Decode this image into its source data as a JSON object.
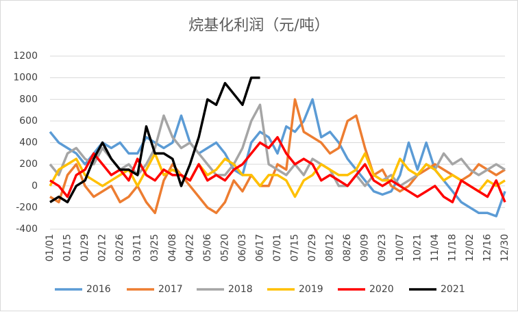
{
  "chart_data": {
    "type": "line",
    "title": "烷基化利润（元/吨）",
    "categories": [
      "01/01",
      null,
      "01/15",
      null,
      "01/29",
      null,
      "02/12",
      null,
      "02/26",
      null,
      "03/11",
      null,
      "03/25",
      null,
      "04/08",
      null,
      "04/22",
      null,
      "05/06",
      null,
      "05/20",
      null,
      "06/03",
      null,
      "06/17",
      null,
      "07/01",
      null,
      "07/15",
      null,
      "07/29",
      null,
      "08/12",
      null,
      "08/26",
      null,
      "09/09",
      null,
      "09/23",
      null,
      "10/07",
      null,
      "10/21",
      null,
      "11/04",
      null,
      "11/18",
      null,
      "12/02",
      null,
      "12/16",
      null,
      "12/30"
    ],
    "series": [
      {
        "name": "2016",
        "color": "#5b9bd5",
        "values": [
          500,
          400,
          350,
          300,
          200,
          300,
          400,
          350,
          400,
          300,
          300,
          450,
          400,
          350,
          400,
          650,
          400,
          300,
          350,
          400,
          300,
          150,
          100,
          400,
          500,
          450,
          300,
          550,
          500,
          600,
          800,
          450,
          500,
          400,
          250,
          150,
          50,
          -50,
          -80,
          -50,
          100,
          400,
          150,
          400,
          150,
          50,
          -50,
          -150,
          -200,
          -250,
          -250,
          -280,
          -50
        ]
      },
      {
        "name": "2017",
        "color": "#ed7d31",
        "values": [
          -100,
          -150,
          100,
          200,
          0,
          -100,
          -50,
          0,
          -150,
          -100,
          0,
          -150,
          -250,
          50,
          200,
          100,
          0,
          -100,
          -200,
          -250,
          -150,
          50,
          -50,
          100,
          0,
          0,
          200,
          150,
          800,
          500,
          450,
          400,
          300,
          350,
          600,
          650,
          350,
          100,
          150,
          0,
          -50,
          0,
          100,
          150,
          200,
          150,
          100,
          50,
          100,
          200,
          150,
          100,
          150
        ]
      },
      {
        "name": "2018",
        "color": "#a5a5a5",
        "values": [
          200,
          100,
          300,
          350,
          250,
          200,
          350,
          250,
          150,
          200,
          100,
          200,
          350,
          650,
          450,
          350,
          400,
          300,
          200,
          100,
          100,
          200,
          350,
          600,
          750,
          200,
          150,
          100,
          200,
          100,
          250,
          200,
          150,
          0,
          0,
          100,
          0,
          100,
          50,
          100,
          0,
          50,
          100,
          200,
          150,
          300,
          200,
          250,
          150,
          100,
          150,
          200,
          150
        ]
      },
      {
        "name": "2019",
        "color": "#ffc000",
        "values": [
          0,
          150,
          200,
          250,
          100,
          50,
          0,
          50,
          100,
          150,
          0,
          150,
          300,
          100,
          150,
          100,
          50,
          200,
          100,
          150,
          250,
          200,
          100,
          100,
          0,
          100,
          100,
          50,
          -100,
          50,
          100,
          200,
          150,
          100,
          100,
          150,
          300,
          100,
          50,
          50,
          250,
          150,
          100,
          200,
          150,
          50,
          100,
          50,
          0,
          -50,
          50,
          0,
          50
        ]
      },
      {
        "name": "2020",
        "color": "#ff0000",
        "values": [
          50,
          0,
          -100,
          100,
          150,
          300,
          200,
          100,
          150,
          50,
          250,
          100,
          50,
          150,
          100,
          100,
          50,
          200,
          50,
          100,
          50,
          150,
          200,
          300,
          400,
          350,
          450,
          300,
          200,
          250,
          200,
          50,
          100,
          50,
          0,
          100,
          200,
          50,
          0,
          50,
          0,
          -50,
          -100,
          -50,
          0,
          -100,
          -150,
          50,
          0,
          -50,
          -100,
          50,
          -150
        ]
      },
      {
        "name": "2021",
        "color": "#000000",
        "values": [
          -150,
          -100,
          -150,
          0,
          50,
          250,
          400,
          250,
          150,
          150,
          100,
          550,
          300,
          300,
          250,
          0,
          200,
          450,
          800,
          750,
          950,
          850,
          750,
          1000,
          1000,
          null,
          null,
          null,
          null,
          null,
          null,
          null,
          null,
          null,
          null,
          null,
          null,
          null,
          null,
          null,
          null,
          null,
          null,
          null,
          null,
          null,
          null,
          null,
          null,
          null,
          null,
          null,
          null
        ]
      }
    ],
    "ylim": [
      -400,
      1200
    ],
    "yticks": [
      -400,
      -200,
      0,
      200,
      400,
      600,
      800,
      1000,
      1200
    ],
    "grid": true,
    "legend": "bottom"
  }
}
